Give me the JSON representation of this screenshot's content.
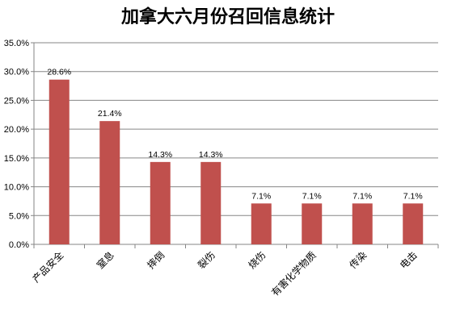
{
  "chart_data": {
    "type": "bar",
    "title": "加拿大六月份召回信息统计",
    "categories": [
      "产品安全",
      "窒息",
      "摔倒",
      "裂伤",
      "烧伤",
      "有害化学物质",
      "传染",
      "电击"
    ],
    "values": [
      28.6,
      21.4,
      14.3,
      14.3,
      7.1,
      7.1,
      7.1,
      7.1
    ],
    "data_labels": [
      "28.6%",
      "21.4%",
      "14.3%",
      "14.3%",
      "7.1%",
      "7.1%",
      "7.1%",
      "7.1%"
    ],
    "yticks": [
      0,
      5,
      10,
      15,
      20,
      25,
      30,
      35
    ],
    "ytick_labels": [
      "0.0%",
      "5.0%",
      "10.0%",
      "15.0%",
      "20.0%",
      "25.0%",
      "30.0%",
      "35.0%"
    ],
    "ylim": [
      0,
      35
    ],
    "xlabel": "",
    "ylabel": "",
    "grid": true,
    "legend": "none",
    "bar_color": "#C0504D"
  }
}
